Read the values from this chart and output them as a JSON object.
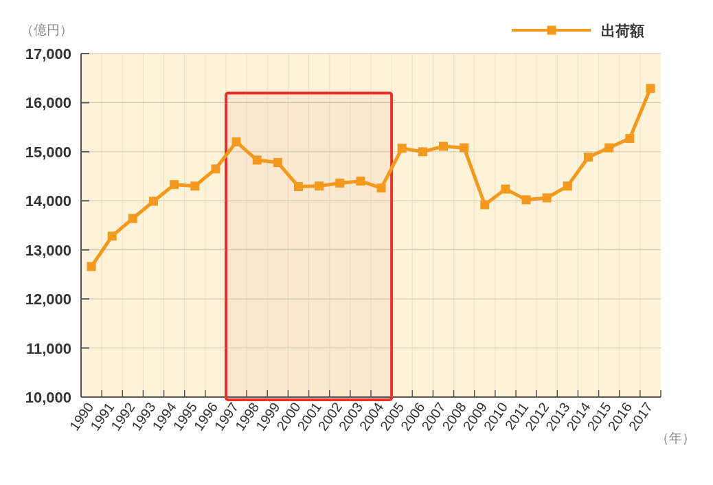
{
  "chart_data": {
    "type": "line",
    "ylabel": "（億円）",
    "xlabel": "（年）",
    "categories": [
      "1990",
      "1991",
      "1992",
      "1993",
      "1994",
      "1995",
      "1996",
      "1997",
      "1998",
      "1999",
      "2000",
      "2001",
      "2002",
      "2003",
      "2004",
      "2005",
      "2006",
      "2007",
      "2008",
      "2009",
      "2010",
      "2011",
      "2012",
      "2013",
      "2014",
      "2015",
      "2016",
      "2017"
    ],
    "series": [
      {
        "name": "出荷額",
        "color": "#f39a1e",
        "values": [
          12660,
          13280,
          13640,
          13990,
          14330,
          14300,
          14650,
          15200,
          14830,
          14780,
          14290,
          14300,
          14360,
          14400,
          14260,
          15070,
          15000,
          15110,
          15080,
          13920,
          14240,
          14020,
          14060,
          14300,
          14890,
          15080,
          15270,
          16290
        ]
      }
    ],
    "ylim": [
      10000,
      17000
    ],
    "yticks": [
      {
        "value": 10000,
        "label": "10,000"
      },
      {
        "value": 11000,
        "label": "11,000"
      },
      {
        "value": 12000,
        "label": "12,000"
      },
      {
        "value": 13000,
        "label": "13,000"
      },
      {
        "value": 14000,
        "label": "14,000"
      },
      {
        "value": 15000,
        "label": "15,000"
      },
      {
        "value": 16000,
        "label": "16,000"
      },
      {
        "value": 17000,
        "label": "17,000"
      }
    ],
    "bands": [
      {
        "axis": "x",
        "from": "1997",
        "to": "2004",
        "color": "#e8312a"
      }
    ],
    "grid": true,
    "legend": "top right",
    "marker": "square",
    "line_style": "solid"
  }
}
